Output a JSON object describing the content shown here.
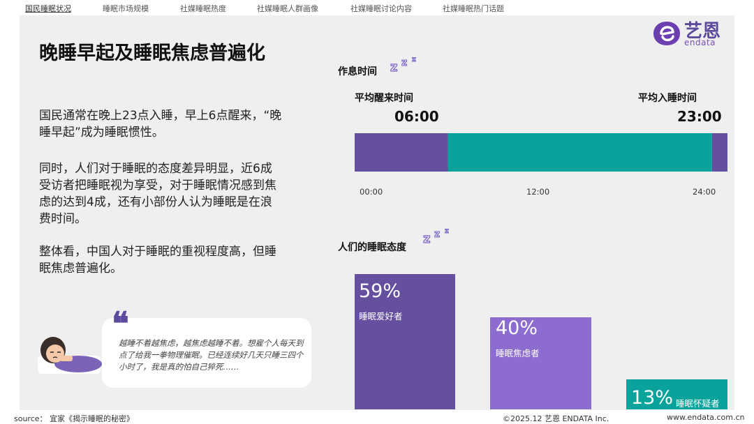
{
  "nav": {
    "items": [
      "国民睡眠状况",
      "睡眠市场规模",
      "社媒睡眠热度",
      "社媒睡眠人群画像",
      "社媒睡眠讨论内容",
      "社媒睡眠热门话题"
    ]
  },
  "logo": {
    "name": "艺恩",
    "sub": "endata"
  },
  "main": {
    "title": "晚睡早起及睡眠焦虑普遍化",
    "paragraphs": [
      "国民通常在晚上23点入睡，早上6点醒来，“晚睡早起”成为睡眠惯性。",
      "同时，人们对于睡眠的态度差异明显，近6成受访者把睡眠视为享受，对于睡眠情况感到焦虑的达到4成，还有小部份人认为睡眠是在浪费时间。",
      "整体看，中国人对于睡眠的重视程度高，但睡眠焦虑普遍化。"
    ],
    "quote": "越睡不着越焦虑，越焦虑越睡不着。想雇个人每天到点了给我一拳物理催眠。已经连续好几天只睡三四个小时了，我是真的怕自己猝死……"
  },
  "schedule": {
    "section_title": "作息时间",
    "wake_label": "平均醒来时间",
    "wake_time": "06:00",
    "sleep_label": "平均入睡时间",
    "sleep_time": "23:00",
    "ticks": [
      "00:00",
      "12:00",
      "24:00"
    ]
  },
  "attitude": {
    "section_title": "人们的睡眠态度"
  },
  "colors": {
    "asleep": "#65509f",
    "awake": "#0aa39b",
    "lover": "#65509f",
    "anxious": "#8c6ccf",
    "doubter": "#0aa39b",
    "brand": "#5c4a9c"
  },
  "chart_data": [
    {
      "type": "bar",
      "orientation": "horizontal-timeline",
      "x_range": [
        "00:00",
        "24:00"
      ],
      "segments": [
        {
          "state": "asleep",
          "start": "00:00",
          "end": "06:00"
        },
        {
          "state": "awake",
          "start": "06:00",
          "end": "23:00"
        },
        {
          "state": "asleep",
          "start": "23:00",
          "end": "24:00"
        }
      ],
      "tick_labels": [
        "00:00",
        "12:00",
        "24:00"
      ]
    },
    {
      "type": "bar",
      "categories": [
        "睡眠爱好者",
        "睡眠焦虑者",
        "睡眠怀疑者"
      ],
      "values": [
        59,
        40,
        13
      ],
      "labels": [
        "59%",
        "40%",
        "13%"
      ],
      "ylim": [
        0,
        100
      ]
    }
  ],
  "footer": {
    "source": "source： 宜家《揭示睡眠的秘密》",
    "copyright": "©2025.12 艺恩 ENDATA Inc.",
    "url": "www.endata.com.cn"
  }
}
